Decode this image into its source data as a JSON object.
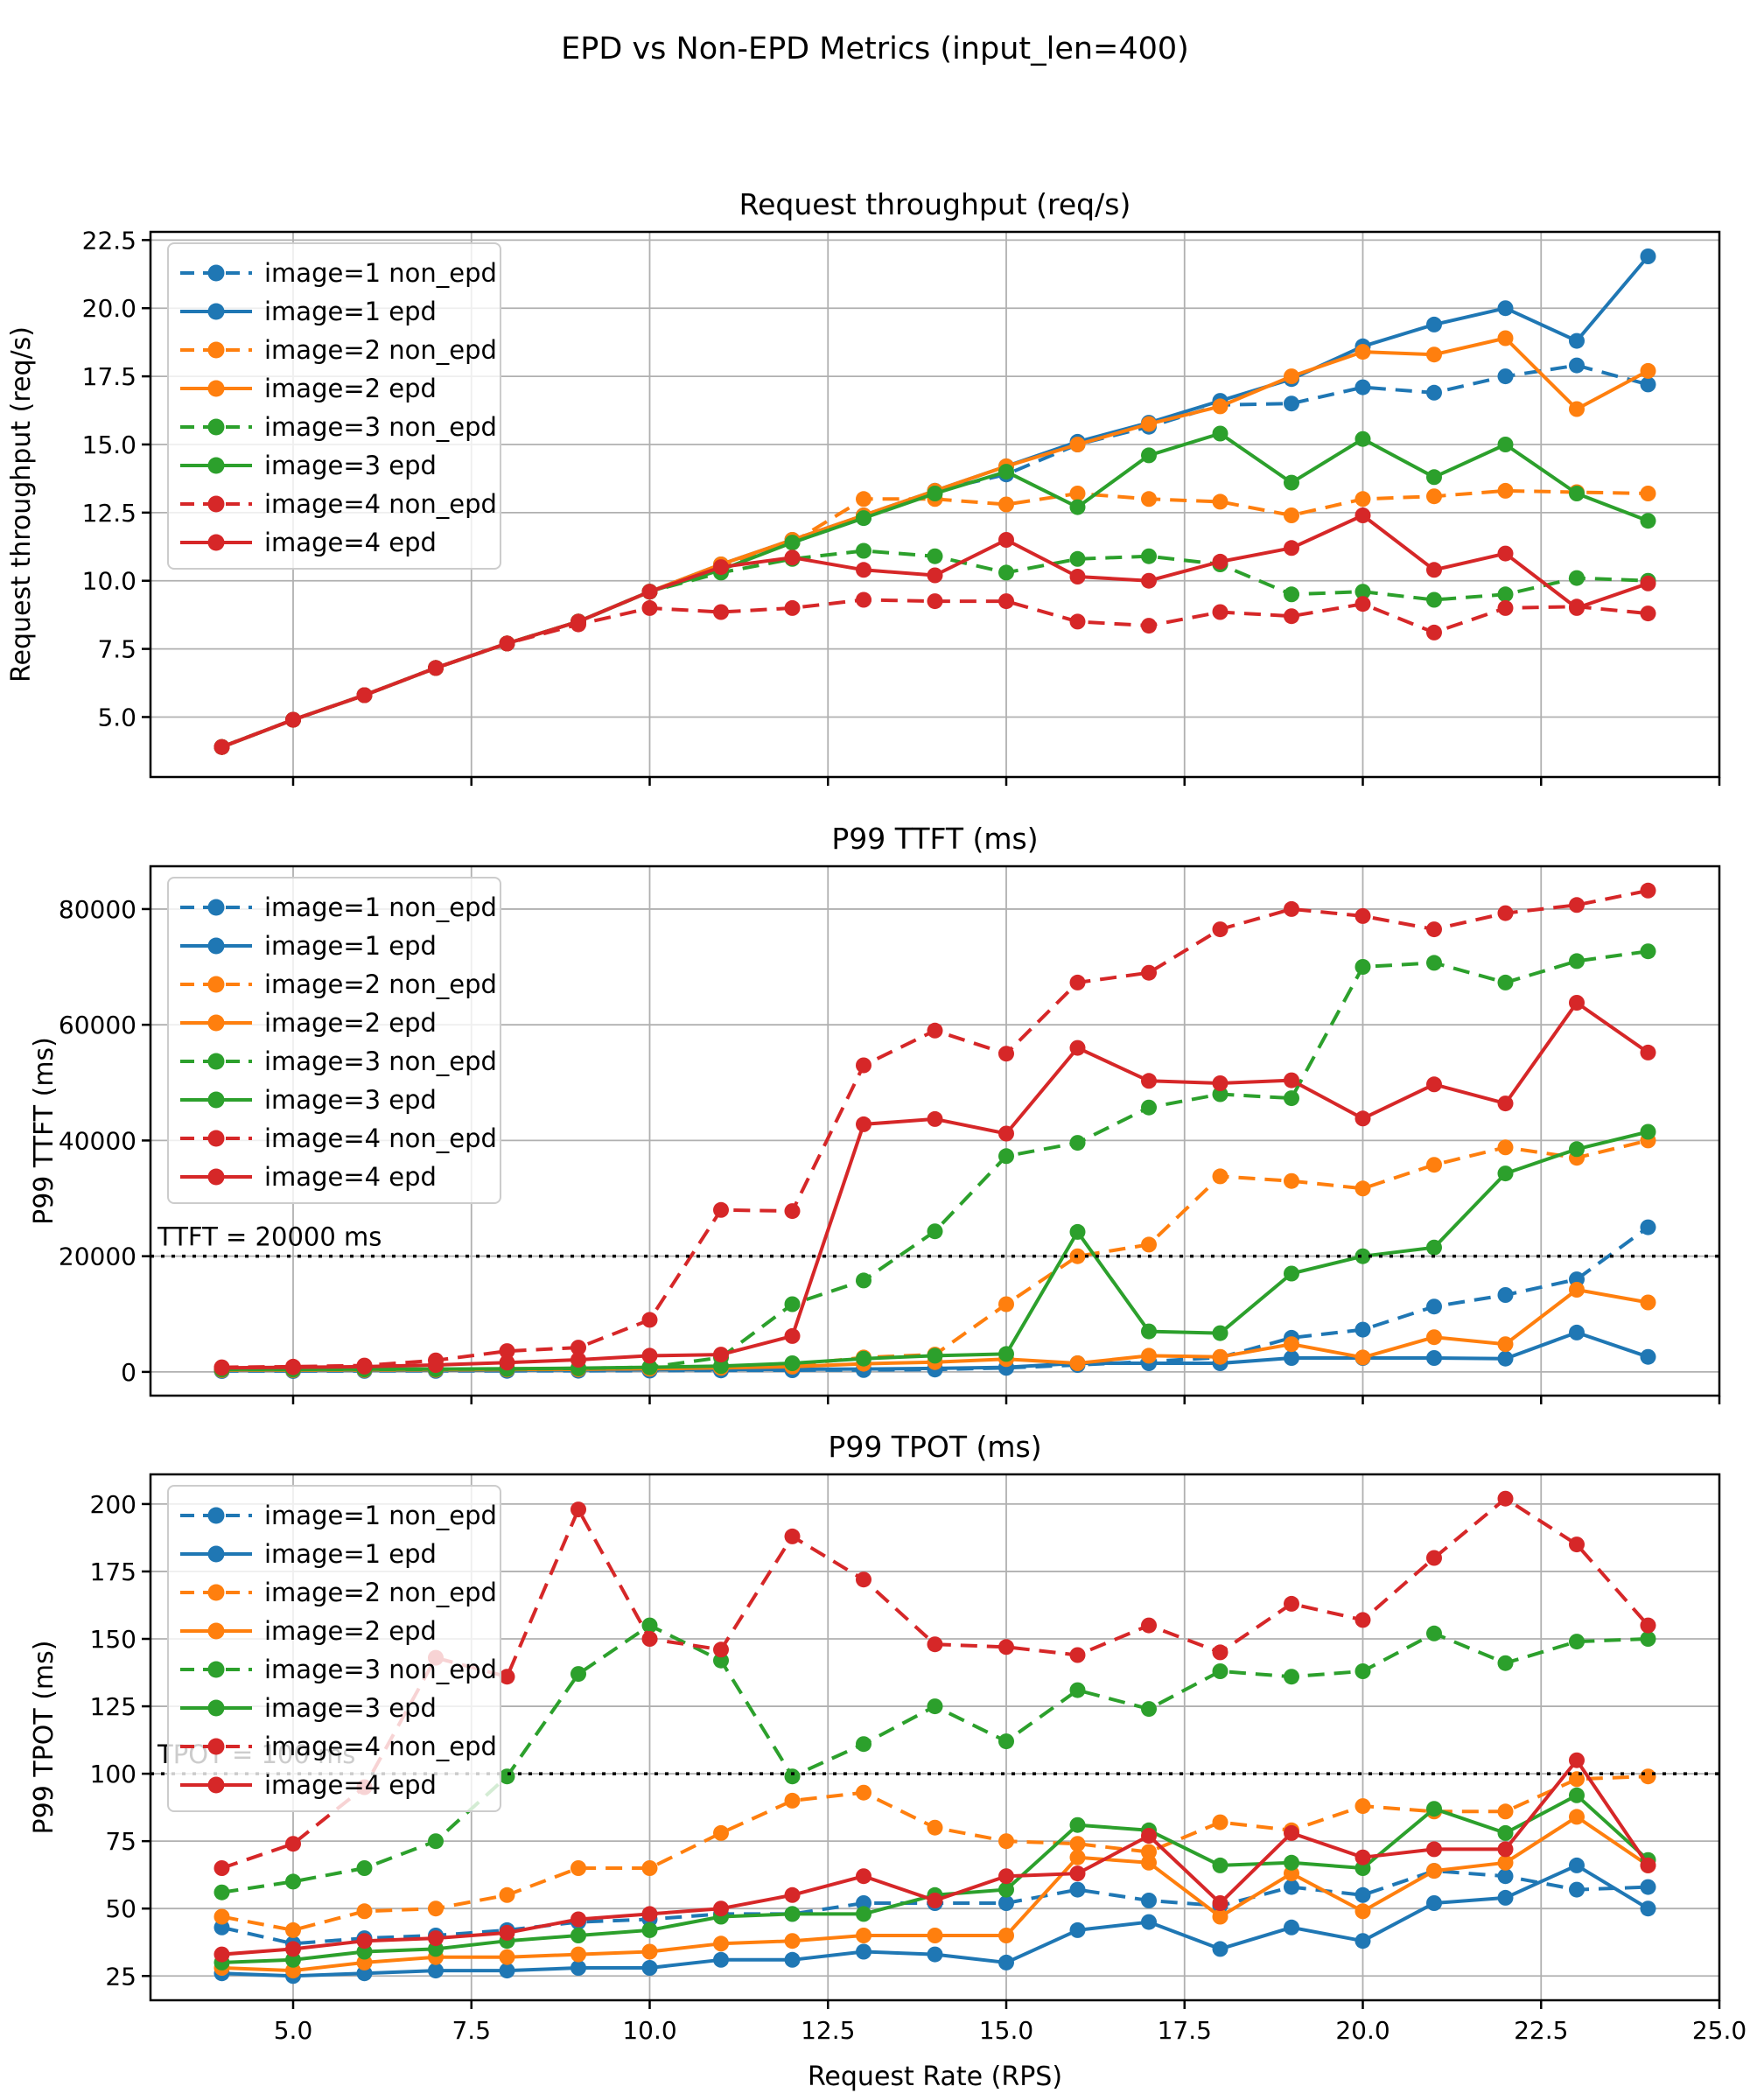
{
  "figure": {
    "suptitle": "EPD vs Non-EPD Metrics (input_len=400)",
    "xlabel": "Request Rate (RPS)",
    "xticks": {
      "values": [
        5,
        7.5,
        10,
        12.5,
        15,
        17.5,
        20,
        22.5,
        25
      ],
      "labels": [
        "5.0",
        "7.5",
        "10.0",
        "12.5",
        "15.0",
        "17.5",
        "20.0",
        "22.5",
        "25.0"
      ]
    },
    "colors": {
      "image1": "#1f77b4",
      "image2": "#ff7f0e",
      "image3": "#2ca02c",
      "image4": "#d62728",
      "grid": "#b0b0b0",
      "spine": "#000000",
      "legend_border": "#cccccc",
      "threshold": "#000000"
    }
  },
  "chart_data": [
    {
      "type": "line",
      "id": "subplot-request-throughput",
      "title": "Request throughput (req/s)",
      "ylabel": "Request throughput (req/s)",
      "xlabel": "Request Rate (RPS)",
      "xlim": [
        3,
        25
      ],
      "ylim": [
        2.8,
        22.8
      ],
      "yticks": {
        "values": [
          5,
          7.5,
          10,
          12.5,
          15,
          17.5,
          20,
          22.5
        ],
        "labels": [
          "5.0",
          "7.5",
          "10.0",
          "12.5",
          "15.0",
          "17.5",
          "20.0",
          "22.5"
        ]
      },
      "grid": true,
      "legend_position": "upper-left",
      "show_xtick_labels": false,
      "threshold": null,
      "x": [
        4,
        5,
        6,
        7,
        8,
        9,
        10,
        11,
        12,
        13,
        14,
        15,
        16,
        17,
        18,
        19,
        20,
        21,
        22,
        23,
        24
      ],
      "series": [
        {
          "name": "image=1 non_epd",
          "color": "#1f77b4",
          "dashed": true,
          "values": [
            3.9,
            4.9,
            5.8,
            6.8,
            7.7,
            8.5,
            9.6,
            10.5,
            11.4,
            12.3,
            13.3,
            13.9,
            15.0,
            15.65,
            16.45,
            16.5,
            17.1,
            16.9,
            17.5,
            17.9,
            17.2
          ]
        },
        {
          "name": "image=1 epd",
          "color": "#1f77b4",
          "dashed": false,
          "values": [
            3.9,
            4.9,
            5.8,
            6.8,
            7.7,
            8.5,
            9.6,
            10.6,
            11.5,
            12.4,
            13.3,
            14.2,
            15.1,
            15.8,
            16.6,
            17.4,
            18.6,
            19.4,
            20.0,
            18.8,
            21.9
          ]
        },
        {
          "name": "image=2 non_epd",
          "color": "#ff7f0e",
          "dashed": true,
          "values": [
            3.9,
            4.9,
            5.8,
            6.8,
            7.7,
            8.5,
            9.6,
            10.5,
            11.4,
            13.0,
            13.0,
            12.8,
            13.2,
            13.0,
            12.9,
            12.4,
            13.0,
            13.1,
            13.3,
            13.25,
            13.2
          ]
        },
        {
          "name": "image=2 epd",
          "color": "#ff7f0e",
          "dashed": false,
          "values": [
            3.9,
            4.9,
            5.8,
            6.8,
            7.7,
            8.5,
            9.6,
            10.6,
            11.5,
            12.4,
            13.3,
            14.2,
            15.0,
            15.75,
            16.4,
            17.5,
            18.4,
            18.3,
            18.9,
            16.3,
            17.7
          ]
        },
        {
          "name": "image=3 non_epd",
          "color": "#2ca02c",
          "dashed": true,
          "values": [
            3.9,
            4.9,
            5.8,
            6.8,
            7.7,
            8.5,
            9.6,
            10.3,
            10.8,
            11.1,
            10.9,
            10.3,
            10.8,
            10.9,
            10.6,
            9.5,
            9.6,
            9.3,
            9.5,
            10.1,
            10.0
          ]
        },
        {
          "name": "image=3 epd",
          "color": "#2ca02c",
          "dashed": false,
          "values": [
            3.9,
            4.9,
            5.8,
            6.8,
            7.7,
            8.5,
            9.6,
            10.4,
            11.4,
            12.3,
            13.2,
            14.0,
            12.7,
            14.6,
            15.4,
            13.6,
            15.2,
            13.8,
            15.0,
            13.2,
            12.2
          ]
        },
        {
          "name": "image=4 non_epd",
          "color": "#d62728",
          "dashed": true,
          "values": [
            3.9,
            4.9,
            5.8,
            6.8,
            7.7,
            8.4,
            9.0,
            8.85,
            9.0,
            9.3,
            9.25,
            9.25,
            8.5,
            8.35,
            8.85,
            8.7,
            9.15,
            8.1,
            9.0,
            9.05,
            8.8
          ]
        },
        {
          "name": "image=4 epd",
          "color": "#d62728",
          "dashed": false,
          "values": [
            3.9,
            4.9,
            5.8,
            6.8,
            7.7,
            8.5,
            9.6,
            10.5,
            10.85,
            10.4,
            10.2,
            11.5,
            10.15,
            10.0,
            10.7,
            11.2,
            12.4,
            10.4,
            11.0,
            9.0,
            9.9
          ]
        }
      ]
    },
    {
      "type": "line",
      "id": "subplot-p99-ttft",
      "title": "P99 TTFT (ms)",
      "ylabel": "P99 TTFT (ms)",
      "xlabel": "Request Rate (RPS)",
      "xlim": [
        3,
        25
      ],
      "ylim": [
        -4100,
        87400
      ],
      "yticks": {
        "values": [
          0,
          20000,
          40000,
          60000,
          80000
        ],
        "labels": [
          "0",
          "20000",
          "40000",
          "60000",
          "80000"
        ]
      },
      "grid": true,
      "legend_position": "upper-left",
      "show_xtick_labels": false,
      "threshold": {
        "value": 20000,
        "label": "TTFT = 20000 ms"
      },
      "x": [
        4,
        5,
        6,
        7,
        8,
        9,
        10,
        11,
        12,
        13,
        14,
        15,
        16,
        17,
        18,
        19,
        20,
        21,
        22,
        23,
        24
      ],
      "series": [
        {
          "name": "image=1 non_epd",
          "color": "#1f77b4",
          "dashed": true,
          "values": [
            150,
            150,
            160,
            170,
            180,
            200,
            220,
            250,
            280,
            320,
            400,
            700,
            1200,
            1800,
            2500,
            5900,
            7300,
            11300,
            13300,
            16000,
            25000
          ]
        },
        {
          "name": "image=1 epd",
          "color": "#1f77b4",
          "dashed": false,
          "values": [
            250,
            250,
            260,
            280,
            300,
            330,
            360,
            400,
            450,
            500,
            600,
            800,
            1500,
            1500,
            1500,
            2400,
            2400,
            2400,
            2300,
            6800,
            2600
          ]
        },
        {
          "name": "image=2 non_epd",
          "color": "#ff7f0e",
          "dashed": true,
          "values": [
            300,
            300,
            320,
            350,
            400,
            450,
            600,
            800,
            1200,
            2500,
            3000,
            11700,
            20000,
            22000,
            33800,
            33000,
            31700,
            35800,
            38800,
            37000,
            40000
          ]
        },
        {
          "name": "image=2 epd",
          "color": "#ff7f0e",
          "dashed": false,
          "values": [
            350,
            350,
            360,
            380,
            420,
            470,
            550,
            700,
            900,
            1400,
            1700,
            2200,
            1500,
            2800,
            2600,
            4800,
            2500,
            6000,
            4800,
            14200,
            12000
          ]
        },
        {
          "name": "image=3 non_epd",
          "color": "#2ca02c",
          "dashed": true,
          "values": [
            400,
            400,
            420,
            450,
            500,
            600,
            800,
            2500,
            11700,
            15800,
            24300,
            37300,
            39600,
            45700,
            48000,
            47300,
            70000,
            70700,
            67300,
            71000,
            72700
          ]
        },
        {
          "name": "image=3 epd",
          "color": "#2ca02c",
          "dashed": false,
          "values": [
            450,
            450,
            470,
            500,
            550,
            650,
            800,
            1000,
            1500,
            2300,
            2800,
            3100,
            24200,
            7000,
            6700,
            17000,
            20000,
            21500,
            34300,
            38500,
            41500
          ]
        },
        {
          "name": "image=4 non_epd",
          "color": "#d62728",
          "dashed": true,
          "values": [
            800,
            900,
            1100,
            2000,
            3600,
            4200,
            9000,
            28000,
            27800,
            53000,
            59000,
            55000,
            67300,
            69000,
            76500,
            80000,
            78800,
            76500,
            79300,
            80700,
            83200
          ]
        },
        {
          "name": "image=4 epd",
          "color": "#d62728",
          "dashed": false,
          "values": [
            700,
            800,
            900,
            1200,
            1600,
            2100,
            2800,
            3000,
            6200,
            42800,
            43700,
            41200,
            56000,
            50300,
            49900,
            50400,
            43800,
            49700,
            46400,
            63800,
            55200
          ]
        }
      ]
    },
    {
      "type": "line",
      "id": "subplot-p99-tpot",
      "title": "P99 TPOT (ms)",
      "ylabel": "P99 TPOT (ms)",
      "xlabel": "Request Rate (RPS)",
      "xlim": [
        3,
        25
      ],
      "ylim": [
        16,
        211
      ],
      "yticks": {
        "values": [
          25,
          50,
          75,
          100,
          125,
          150,
          175,
          200
        ],
        "labels": [
          "25",
          "50",
          "75",
          "100",
          "125",
          "150",
          "175",
          "200"
        ]
      },
      "grid": true,
      "legend_position": "upper-left",
      "show_xtick_labels": true,
      "threshold": {
        "value": 100,
        "label": "TPOT = 100 ms"
      },
      "x": [
        4,
        5,
        6,
        7,
        8,
        9,
        10,
        11,
        12,
        13,
        14,
        15,
        16,
        17,
        18,
        19,
        20,
        21,
        22,
        23,
        24
      ],
      "series": [
        {
          "name": "image=1 non_epd",
          "color": "#1f77b4",
          "dashed": true,
          "values": [
            43,
            37,
            39,
            40,
            42,
            45,
            46,
            48,
            48,
            52,
            52,
            52,
            57,
            53,
            51,
            58,
            55,
            64,
            62,
            57,
            58
          ]
        },
        {
          "name": "image=1 epd",
          "color": "#1f77b4",
          "dashed": false,
          "values": [
            26,
            25,
            26,
            27,
            27,
            28,
            28,
            31,
            31,
            34,
            33,
            30,
            42,
            45,
            35,
            43,
            38,
            52,
            54,
            66,
            50
          ]
        },
        {
          "name": "image=2 non_epd",
          "color": "#ff7f0e",
          "dashed": true,
          "values": [
            47,
            42,
            49,
            50,
            55,
            65,
            65,
            78,
            90,
            93,
            80,
            75,
            74,
            71,
            82,
            79,
            88,
            86,
            86,
            98,
            99
          ]
        },
        {
          "name": "image=2 epd",
          "color": "#ff7f0e",
          "dashed": false,
          "values": [
            28,
            27,
            30,
            32,
            32,
            33,
            34,
            37,
            38,
            40,
            40,
            40,
            69,
            67,
            47,
            63,
            49,
            64,
            67,
            84,
            66
          ]
        },
        {
          "name": "image=3 non_epd",
          "color": "#2ca02c",
          "dashed": true,
          "values": [
            56,
            60,
            65,
            75,
            99,
            137,
            155,
            142,
            99,
            111,
            125,
            112,
            131,
            124,
            138,
            136,
            138,
            152,
            141,
            149,
            150
          ]
        },
        {
          "name": "image=3 epd",
          "color": "#2ca02c",
          "dashed": false,
          "values": [
            30,
            31,
            34,
            35,
            38,
            40,
            42,
            47,
            48,
            48,
            55,
            57,
            81,
            79,
            66,
            67,
            65,
            87,
            78,
            92,
            68
          ]
        },
        {
          "name": "image=4 non_epd",
          "color": "#d62728",
          "dashed": true,
          "values": [
            65,
            74,
            95,
            143,
            136,
            198,
            150,
            146,
            188,
            172,
            148,
            147,
            144,
            155,
            145,
            163,
            157,
            180,
            202,
            185,
            155
          ]
        },
        {
          "name": "image=4 epd",
          "color": "#d62728",
          "dashed": false,
          "values": [
            33,
            35,
            38,
            39,
            41,
            46,
            48,
            50,
            55,
            62,
            53,
            62,
            63,
            77,
            52,
            78,
            69,
            72,
            72,
            105,
            66
          ]
        }
      ]
    }
  ]
}
